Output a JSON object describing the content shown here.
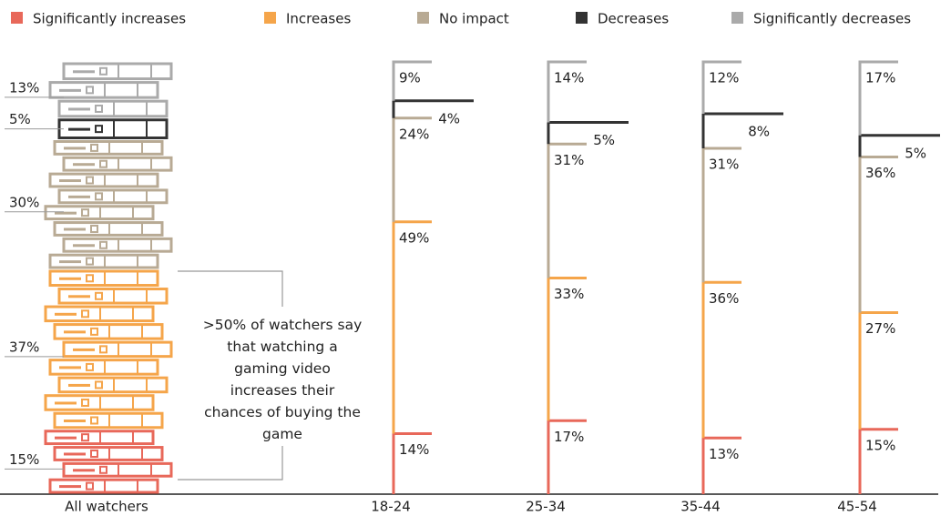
{
  "chart_data": {
    "type": "step_stack",
    "categories": [
      "All watchers",
      "18-24",
      "25-34",
      "35-44",
      "45-54"
    ],
    "series": [
      {
        "name": "Significantly increases",
        "color": "#e8685a",
        "values": [
          15,
          14,
          17,
          13,
          15
        ],
        "value_labels": [
          "15%",
          "14%",
          "17%",
          "13%",
          "15%"
        ]
      },
      {
        "name": "Increases",
        "color": "#f5a54a",
        "values": [
          37,
          49,
          33,
          36,
          27
        ],
        "value_labels": [
          "37%",
          "49%",
          "33%",
          "36%",
          "27%"
        ]
      },
      {
        "name": "No impact",
        "color": "#b8aa94",
        "values": [
          30,
          24,
          31,
          31,
          36
        ],
        "value_labels": [
          "30%",
          "24%",
          "31%",
          "31%",
          "36%"
        ]
      },
      {
        "name": "Decreases",
        "color": "#333333",
        "values": [
          5,
          4,
          5,
          8,
          5
        ],
        "value_labels": [
          "5%",
          "4%",
          "5%",
          "8%",
          "5%"
        ]
      },
      {
        "name": "Significantly decreases",
        "color": "#aaaaaa",
        "values": [
          13,
          9,
          14,
          12,
          17
        ],
        "value_labels": [
          "13%",
          "9%",
          "14%",
          "12%",
          "17%"
        ]
      }
    ],
    "annotation": ">50% of watchers say that watching a gaming video increases their chances of buying the game"
  }
}
